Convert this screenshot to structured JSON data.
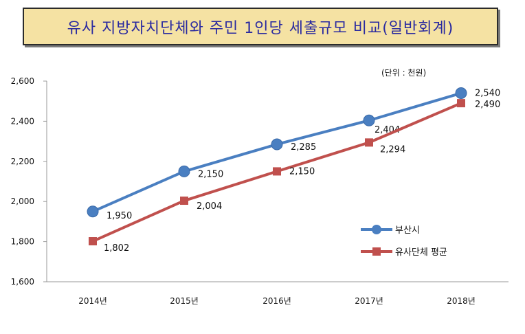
{
  "title": "유사 지방자치단체와 주민 1인당 세출규모 비교(일반회계)",
  "unit": "(단위 : 천원)",
  "chart_data": {
    "type": "line",
    "categories": [
      "2014년",
      "2015년",
      "2016년",
      "2017년",
      "2018년"
    ],
    "series": [
      {
        "name": "부산시",
        "values": [
          1950,
          2150,
          2285,
          2404,
          2540
        ],
        "color": "#4a7fc1",
        "marker": "circle",
        "labels": [
          "1,950",
          "2,150",
          "2,285",
          "2,404",
          "2,540"
        ]
      },
      {
        "name": "유사단체 평균",
        "values": [
          1802,
          2004,
          2150,
          2294,
          2490
        ],
        "color": "#c0504d",
        "marker": "square",
        "labels": [
          "1,802",
          "2,004",
          "2,150",
          "2,294",
          "2,490"
        ]
      }
    ],
    "ylim": [
      1600,
      2600
    ],
    "yticks": [
      1600,
      1800,
      2000,
      2200,
      2400,
      2600
    ],
    "yticklabels": [
      "1,600",
      "1,800",
      "2,000",
      "2,200",
      "2,400",
      "2,600"
    ],
    "legend_position": "right",
    "grid": false
  }
}
